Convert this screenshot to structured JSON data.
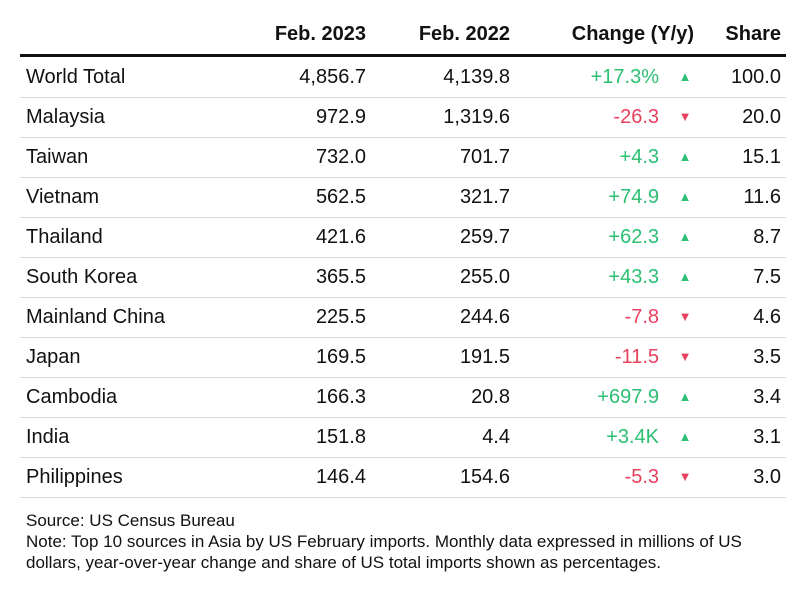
{
  "chart_data": {
    "type": "table",
    "columns": [
      "",
      "Feb. 2023",
      "Feb. 2022",
      "Change (Y/y)",
      "Share"
    ],
    "rows": [
      {
        "name": "World Total",
        "feb_2023": "4,856.7",
        "feb_2022": "4,139.8",
        "change": "+17.3%",
        "direction": "up",
        "share": "100.0"
      },
      {
        "name": "Malaysia",
        "feb_2023": "972.9",
        "feb_2022": "1,319.6",
        "change": "-26.3",
        "direction": "down",
        "share": "20.0"
      },
      {
        "name": "Taiwan",
        "feb_2023": "732.0",
        "feb_2022": "701.7",
        "change": "+4.3",
        "direction": "up",
        "share": "15.1"
      },
      {
        "name": "Vietnam",
        "feb_2023": "562.5",
        "feb_2022": "321.7",
        "change": "+74.9",
        "direction": "up",
        "share": "11.6"
      },
      {
        "name": "Thailand",
        "feb_2023": "421.6",
        "feb_2022": "259.7",
        "change": "+62.3",
        "direction": "up",
        "share": "8.7"
      },
      {
        "name": "South Korea",
        "feb_2023": "365.5",
        "feb_2022": "255.0",
        "change": "+43.3",
        "direction": "up",
        "share": "7.5"
      },
      {
        "name": "Mainland China",
        "feb_2023": "225.5",
        "feb_2022": "244.6",
        "change": "-7.8",
        "direction": "down",
        "share": "4.6"
      },
      {
        "name": "Japan",
        "feb_2023": "169.5",
        "feb_2022": "191.5",
        "change": "-11.5",
        "direction": "down",
        "share": "3.5"
      },
      {
        "name": "Cambodia",
        "feb_2023": "166.3",
        "feb_2022": "20.8",
        "change": "+697.9",
        "direction": "up",
        "share": "3.4"
      },
      {
        "name": "India",
        "feb_2023": "151.8",
        "feb_2022": "4.4",
        "change": "+3.4K",
        "direction": "up",
        "share": "3.1"
      },
      {
        "name": "Philippines",
        "feb_2023": "146.4",
        "feb_2022": "154.6",
        "change": "-5.3",
        "direction": "down",
        "share": "3.0"
      }
    ],
    "colors": {
      "up": "#2cbf73",
      "down": "#e8415e",
      "text": "#111111"
    }
  },
  "footer": {
    "source": "Source: US Census Bureau",
    "note": "Note: Top 10 sources in Asia by US February imports. Monthly data expressed in millions of US dollars, year-over-year change and share of US total imports shown as percentages."
  }
}
